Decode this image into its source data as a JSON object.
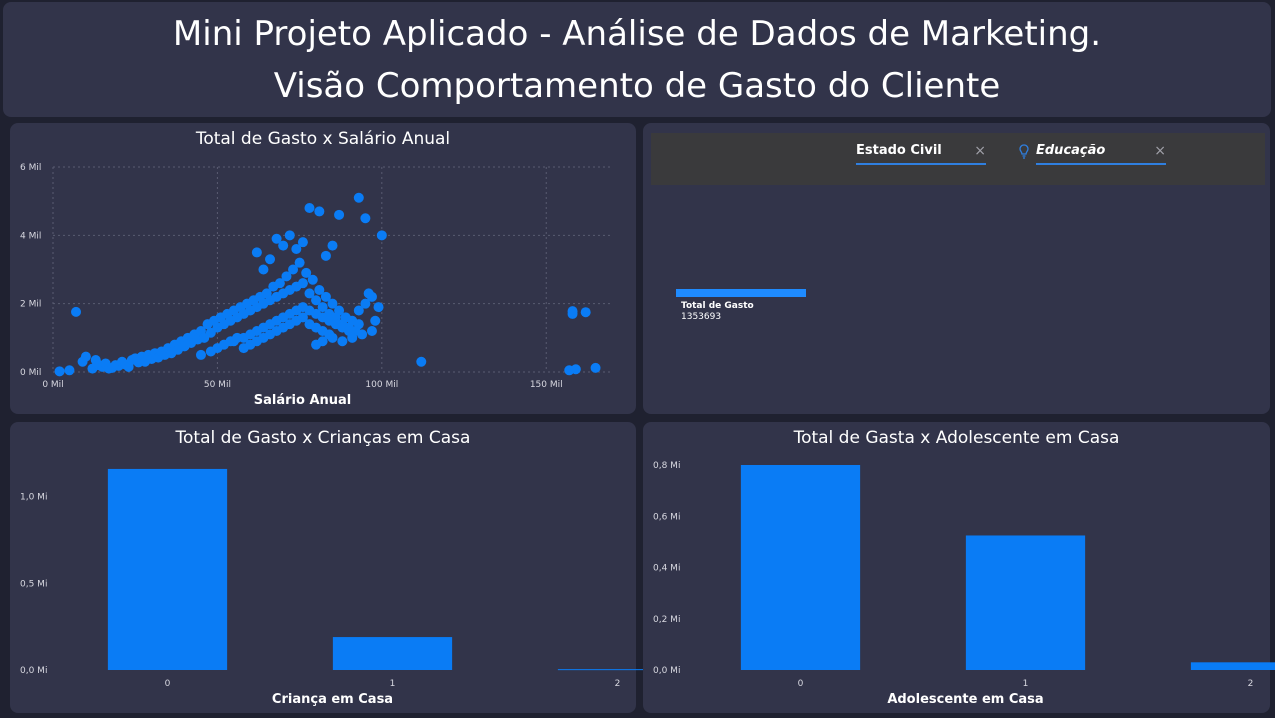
{
  "header": {
    "line1": "Mini Projeto Aplicado - Análise de Dados de Marketing.",
    "line2": "Visão Comportamento de Gasto do Cliente"
  },
  "colors": {
    "background": "#1f2130",
    "panel": "#32344a",
    "bar": "#0a7cf5",
    "accent": "#2f7fe0"
  },
  "filters": {
    "estado_civil": {
      "label": "Estado Civil",
      "clear": "×"
    },
    "educacao": {
      "label": "Educação",
      "clear": "×",
      "icon": "lightbulb-icon"
    }
  },
  "kpi": {
    "label": "Total de Gasto",
    "value": "1353693"
  },
  "chart_data": [
    {
      "type": "scatter",
      "title": "Total de Gasto x Salário Anual",
      "xlabel": "Salário Anual",
      "ylabel": "",
      "xlim": [
        0,
        170
      ],
      "ylim": [
        0,
        6
      ],
      "x_ticks": [
        "0 Mil",
        "50 Mil",
        "100 Mil",
        "150 Mil"
      ],
      "x_tick_values": [
        0,
        50,
        100,
        150
      ],
      "y_ticks": [
        "0 Mil",
        "2 Mil",
        "4 Mil",
        "6 Mil"
      ],
      "y_tick_values": [
        0,
        2,
        4,
        6
      ],
      "note": "",
      "points": [
        [
          2,
          0.02
        ],
        [
          5,
          0.05
        ],
        [
          7,
          1.76
        ],
        [
          9,
          0.3
        ],
        [
          10,
          0.45
        ],
        [
          12,
          0.1
        ],
        [
          13,
          0.35
        ],
        [
          14,
          0.2
        ],
        [
          15,
          0.15
        ],
        [
          16,
          0.25
        ],
        [
          17,
          0.1
        ],
        [
          18,
          0.12
        ],
        [
          19,
          0.2
        ],
        [
          20,
          0.18
        ],
        [
          21,
          0.3
        ],
        [
          22,
          0.22
        ],
        [
          23,
          0.15
        ],
        [
          24,
          0.35
        ],
        [
          25,
          0.4
        ],
        [
          26,
          0.28
        ],
        [
          27,
          0.45
        ],
        [
          28,
          0.3
        ],
        [
          29,
          0.5
        ],
        [
          30,
          0.38
        ],
        [
          31,
          0.55
        ],
        [
          32,
          0.42
        ],
        [
          33,
          0.6
        ],
        [
          34,
          0.5
        ],
        [
          35,
          0.7
        ],
        [
          36,
          0.55
        ],
        [
          37,
          0.8
        ],
        [
          38,
          0.65
        ],
        [
          39,
          0.9
        ],
        [
          40,
          0.75
        ],
        [
          41,
          1.0
        ],
        [
          42,
          0.85
        ],
        [
          43,
          1.1
        ],
        [
          44,
          0.95
        ],
        [
          45,
          1.2
        ],
        [
          46,
          1.0
        ],
        [
          47,
          1.4
        ],
        [
          48,
          1.15
        ],
        [
          49,
          1.5
        ],
        [
          50,
          1.3
        ],
        [
          51,
          1.6
        ],
        [
          52,
          1.4
        ],
        [
          53,
          1.7
        ],
        [
          54,
          1.5
        ],
        [
          55,
          1.8
        ],
        [
          56,
          1.6
        ],
        [
          57,
          1.9
        ],
        [
          58,
          1.7
        ],
        [
          59,
          2.0
        ],
        [
          60,
          1.8
        ],
        [
          61,
          2.1
        ],
        [
          62,
          1.9
        ],
        [
          63,
          2.2
        ],
        [
          64,
          2.0
        ],
        [
          65,
          2.3
        ],
        [
          66,
          2.1
        ],
        [
          67,
          2.5
        ],
        [
          68,
          2.2
        ],
        [
          69,
          2.6
        ],
        [
          70,
          2.3
        ],
        [
          71,
          2.8
        ],
        [
          72,
          2.4
        ],
        [
          73,
          3.0
        ],
        [
          74,
          2.5
        ],
        [
          75,
          3.2
        ],
        [
          76,
          2.6
        ],
        [
          77,
          2.9
        ],
        [
          78,
          2.3
        ],
        [
          79,
          2.7
        ],
        [
          80,
          2.1
        ],
        [
          81,
          2.4
        ],
        [
          82,
          1.9
        ],
        [
          83,
          2.2
        ],
        [
          84,
          1.7
        ],
        [
          85,
          2.0
        ],
        [
          86,
          1.6
        ],
        [
          87,
          1.8
        ],
        [
          88,
          1.4
        ],
        [
          89,
          1.6
        ],
        [
          90,
          1.3
        ],
        [
          91,
          1.5
        ],
        [
          92,
          1.2
        ],
        [
          93,
          1.4
        ],
        [
          94,
          1.1
        ],
        [
          55,
          0.9
        ],
        [
          58,
          1.0
        ],
        [
          60,
          1.1
        ],
        [
          62,
          1.2
        ],
        [
          64,
          1.3
        ],
        [
          66,
          1.4
        ],
        [
          68,
          1.5
        ],
        [
          70,
          1.6
        ],
        [
          72,
          1.7
        ],
        [
          74,
          1.8
        ],
        [
          76,
          1.9
        ],
        [
          78,
          1.8
        ],
        [
          80,
          1.7
        ],
        [
          82,
          1.6
        ],
        [
          84,
          1.5
        ],
        [
          86,
          1.4
        ],
        [
          88,
          1.3
        ],
        [
          90,
          1.2
        ],
        [
          45,
          0.5
        ],
        [
          48,
          0.6
        ],
        [
          50,
          0.7
        ],
        [
          52,
          0.8
        ],
        [
          54,
          0.9
        ],
        [
          56,
          1.0
        ],
        [
          58,
          0.7
        ],
        [
          60,
          0.8
        ],
        [
          62,
          0.9
        ],
        [
          64,
          1.0
        ],
        [
          66,
          1.1
        ],
        [
          68,
          1.2
        ],
        [
          70,
          1.3
        ],
        [
          72,
          1.4
        ],
        [
          74,
          1.5
        ],
        [
          76,
          1.6
        ],
        [
          78,
          1.4
        ],
        [
          80,
          1.3
        ],
        [
          82,
          1.2
        ],
        [
          84,
          1.1
        ],
        [
          62,
          3.5
        ],
        [
          64,
          3.0
        ],
        [
          66,
          3.3
        ],
        [
          68,
          3.9
        ],
        [
          70,
          3.7
        ],
        [
          72,
          4.0
        ],
        [
          74,
          3.6
        ],
        [
          76,
          3.8
        ],
        [
          78,
          4.8
        ],
        [
          81,
          4.7
        ],
        [
          83,
          3.4
        ],
        [
          85,
          3.7
        ],
        [
          87,
          4.6
        ],
        [
          93,
          5.1
        ],
        [
          95,
          4.5
        ],
        [
          100,
          4.0
        ],
        [
          96,
          2.3
        ],
        [
          97,
          1.2
        ],
        [
          98,
          1.5
        ],
        [
          112,
          0.3
        ],
        [
          80,
          0.8
        ],
        [
          82,
          0.9
        ],
        [
          85,
          1.0
        ],
        [
          88,
          0.9
        ],
        [
          91,
          1.0
        ],
        [
          93,
          1.8
        ],
        [
          95,
          2.0
        ],
        [
          97,
          2.2
        ],
        [
          99,
          1.9
        ],
        [
          158,
          1.7
        ],
        [
          158,
          1.78
        ],
        [
          162,
          1.75
        ],
        [
          157,
          0.05
        ],
        [
          159,
          0.08
        ],
        [
          165,
          0.12
        ]
      ]
    },
    {
      "type": "bar",
      "title": "Total de Gasto x Crianças em Casa",
      "xlabel": "Criança em Casa",
      "ylabel": "",
      "categories": [
        "0",
        "1",
        "2"
      ],
      "values": [
        1.16,
        0.19,
        0.005
      ],
      "ylim": [
        0,
        1.2
      ],
      "y_ticks": [
        "0,0 Mi",
        "0,5 Mi",
        "1,0 Mi"
      ],
      "y_tick_values": [
        0,
        0.5,
        1.0
      ]
    },
    {
      "type": "bar",
      "title": "Total de Gasta x Adolescente em Casa",
      "xlabel": "Adolescente em Casa",
      "ylabel": "",
      "categories": [
        "0",
        "1",
        "2"
      ],
      "values": [
        0.8,
        0.525,
        0.03
      ],
      "ylim": [
        0,
        0.8
      ],
      "y_ticks": [
        "0,0 Mi",
        "0,2 Mi",
        "0,4 Mi",
        "0,6 Mi",
        "0,8 Mi"
      ],
      "y_tick_values": [
        0,
        0.2,
        0.4,
        0.6,
        0.8
      ]
    }
  ]
}
